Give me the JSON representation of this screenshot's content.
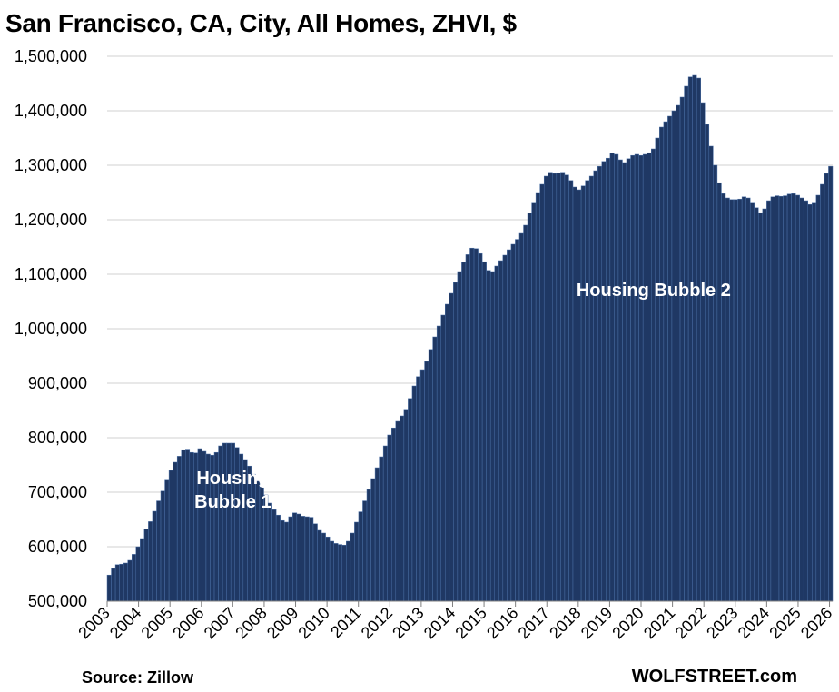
{
  "chart_data": {
    "type": "bar",
    "title": "San Francisco, CA, City, All Homes, ZHVI, $",
    "source": "Source: Zillow",
    "site": "WOLFSTREET.com",
    "bar_color": "#1f3864",
    "bar_edge_color": "#4a6fa5",
    "grid": true,
    "ylim": [
      500000,
      1500000
    ],
    "yticks": [
      500000,
      600000,
      700000,
      800000,
      900000,
      1000000,
      1100000,
      1200000,
      1300000,
      1400000,
      1500000
    ],
    "ytick_labels": [
      "500,000",
      "600,000",
      "700,000",
      "800,000",
      "900,000",
      "1,000,000",
      "1,100,000",
      "1,200,000",
      "1,300,000",
      "1,400,000",
      "1,500,000"
    ],
    "xtick_labels": [
      "2003",
      "2004",
      "2005",
      "2006",
      "2007",
      "2008",
      "2009",
      "2010",
      "2011",
      "2012",
      "2013",
      "2014",
      "2015",
      "2016",
      "2017",
      "2018",
      "2019",
      "2020",
      "2021",
      "2022",
      "2023",
      "2024",
      "2025",
      "2026"
    ],
    "xrange_years": [
      2003,
      2026.1
    ],
    "annotations": [
      {
        "lines": [
          "Housing",
          "Bubble 1"
        ],
        "x": 2007.0,
        "y": 715000
      },
      {
        "lines": [
          "Housing Bubble 2"
        ],
        "x": 2020.4,
        "y": 1060000
      }
    ],
    "series": [
      {
        "values": [
          548000,
          560000,
          567000,
          568000,
          570000,
          575000,
          586000,
          600000,
          615000,
          632000,
          646000,
          665000,
          684000,
          702000,
          722000,
          740000,
          755000,
          766000,
          778000,
          779000,
          773000,
          772000,
          780000,
          775000,
          770000,
          768000,
          773000,
          785000,
          790000,
          790000,
          790000,
          782000,
          770000,
          760000,
          748000,
          733000,
          720000,
          710000,
          695000,
          680000,
          668000,
          658000,
          648000,
          645000,
          655000,
          662000,
          660000,
          656000,
          655000,
          654000,
          642000,
          630000,
          625000,
          618000,
          610000,
          606000,
          604000,
          603000,
          610000,
          625000,
          645000,
          664000,
          684000,
          705000,
          725000,
          745000,
          765000,
          785000,
          805000,
          818000,
          830000,
          840000,
          852000,
          872000,
          895000,
          912000,
          925000,
          940000,
          962000,
          985000,
          1005000,
          1025000,
          1045000,
          1065000,
          1085000,
          1105000,
          1122000,
          1136000,
          1148000,
          1147000,
          1138000,
          1123000,
          1107000,
          1105000,
          1115000,
          1125000,
          1135000,
          1145000,
          1155000,
          1164000,
          1175000,
          1190000,
          1212000,
          1232000,
          1250000,
          1265000,
          1280000,
          1287000,
          1285000,
          1286000,
          1287000,
          1282000,
          1272000,
          1260000,
          1255000,
          1262000,
          1272000,
          1280000,
          1290000,
          1298000,
          1307000,
          1313000,
          1322000,
          1320000,
          1310000,
          1305000,
          1312000,
          1318000,
          1320000,
          1318000,
          1320000,
          1323000,
          1330000,
          1350000,
          1370000,
          1380000,
          1390000,
          1400000,
          1410000,
          1425000,
          1445000,
          1462000,
          1465000,
          1460000,
          1415000,
          1375000,
          1335000,
          1300000,
          1268000,
          1248000,
          1240000,
          1237000,
          1237000,
          1238000,
          1242000,
          1240000,
          1232000,
          1222000,
          1213000,
          1220000,
          1235000,
          1242000,
          1244000,
          1243000,
          1244000,
          1247000,
          1248000,
          1245000,
          1240000,
          1235000,
          1228000,
          1232000,
          1245000,
          1265000,
          1285000,
          1298000
        ]
      }
    ]
  }
}
